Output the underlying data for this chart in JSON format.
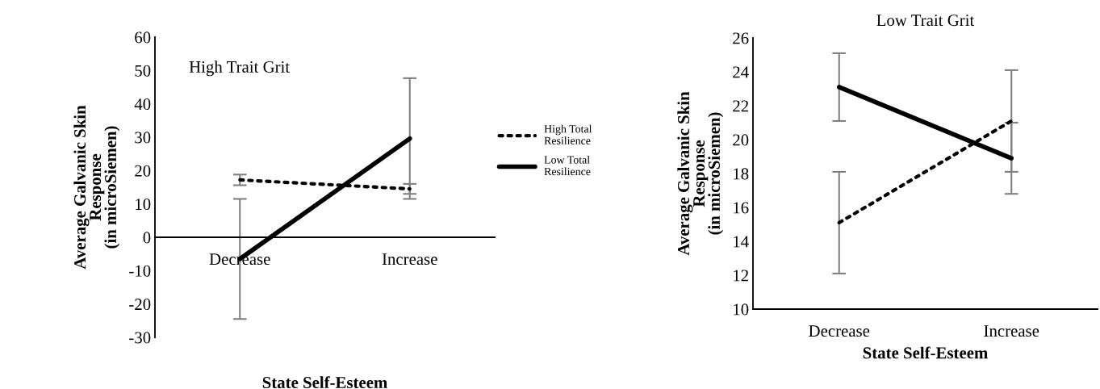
{
  "chart_data": [
    {
      "type": "line",
      "title": "High Trait Grit",
      "xlabel": "State Self-Esteem",
      "ylabel": "Average Galvanic Skin\nResponse\n(in microSiemen)",
      "categories": [
        "Decrease",
        "Increase"
      ],
      "series": [
        {
          "name": "High Total\nResilience",
          "color": "#000000",
          "line_style": "dotted",
          "values": [
            17.2,
            14.5
          ],
          "errors": [
            1.6,
            1.5
          ]
        },
        {
          "name": "Low Total\nResilience",
          "color": "#000000",
          "line_style": "solid",
          "values": [
            -6.5,
            29.6
          ],
          "errors": [
            18,
            18.1
          ]
        }
      ],
      "ylim": [
        -30,
        60
      ],
      "yticks": [
        -30,
        -20,
        -10,
        0,
        10,
        20,
        30,
        40,
        50,
        60
      ],
      "legend": "right",
      "grid": false,
      "marker": "none"
    },
    {
      "type": "line",
      "title": "Low Trait Grit",
      "xlabel": "State Self-Esteem",
      "ylabel": "Average Galvanic Skin\nResponse\n(in microSiemen)",
      "categories": [
        "Decrease",
        "Increase"
      ],
      "series": [
        {
          "color": "#000000",
          "line_style": "dotted",
          "values": [
            15.1,
            21.1
          ],
          "errors": [
            3.0,
            3.0
          ]
        },
        {
          "color": "#000000",
          "line_style": "solid",
          "values": [
            23.1,
            18.9
          ],
          "errors": [
            2.0,
            2.1
          ]
        }
      ],
      "ylim": [
        10,
        26
      ],
      "yticks": [
        10,
        12,
        14,
        16,
        18,
        20,
        22,
        24,
        26
      ],
      "grid": false,
      "marker": "none"
    }
  ]
}
